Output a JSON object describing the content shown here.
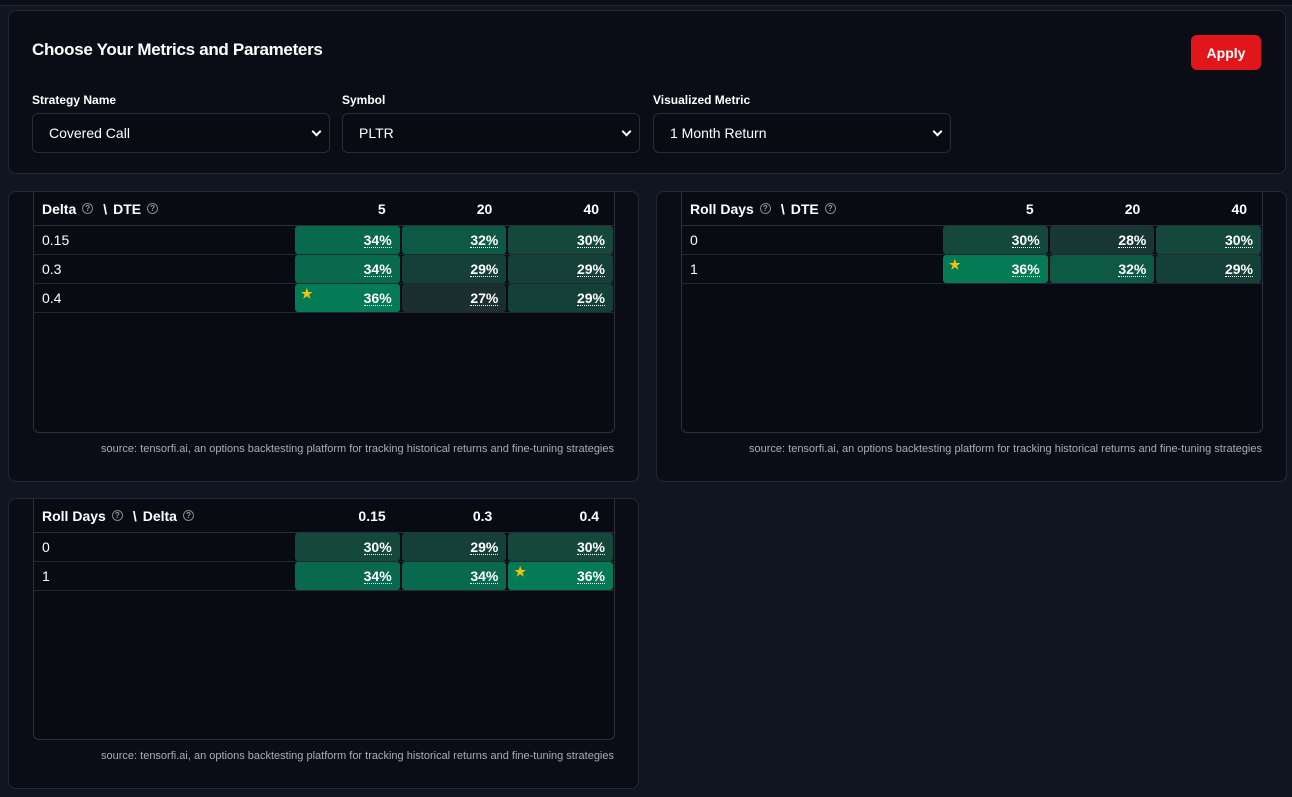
{
  "params": {
    "title": "Choose Your Metrics and Parameters",
    "apply_label": "Apply",
    "fields": [
      {
        "label": "Strategy Name",
        "value": "Covered Call"
      },
      {
        "label": "Symbol",
        "value": "PLTR"
      },
      {
        "label": "Visualized Metric",
        "value": "1 Month Return"
      }
    ]
  },
  "source": "source: tensorfi.ai, an options backtesting platform for tracking historical returns and fine-tuning strategies",
  "colors": {
    "low": "#1a2f2e",
    "high": "#047a55",
    "star": "#f5c211",
    "apply": "#e0161b"
  },
  "grids": [
    {
      "row_param": "Delta",
      "col_param": "DTE",
      "cols": [
        "5",
        "20",
        "40"
      ],
      "rows": [
        {
          "label": "0.15",
          "cells": [
            {
              "v": "34%",
              "n": 34
            },
            {
              "v": "32%",
              "n": 32
            },
            {
              "v": "30%",
              "n": 30
            }
          ]
        },
        {
          "label": "0.3",
          "cells": [
            {
              "v": "34%",
              "n": 34
            },
            {
              "v": "29%",
              "n": 29
            },
            {
              "v": "29%",
              "n": 29
            }
          ]
        },
        {
          "label": "0.4",
          "cells": [
            {
              "v": "36%",
              "n": 36,
              "best": true
            },
            {
              "v": "27%",
              "n": 27
            },
            {
              "v": "29%",
              "n": 29
            }
          ]
        }
      ]
    },
    {
      "row_param": "Roll Days",
      "col_param": "DTE",
      "cols": [
        "5",
        "20",
        "40"
      ],
      "rows": [
        {
          "label": "0",
          "cells": [
            {
              "v": "30%",
              "n": 30
            },
            {
              "v": "28%",
              "n": 28
            },
            {
              "v": "30%",
              "n": 30
            }
          ]
        },
        {
          "label": "1",
          "cells": [
            {
              "v": "36%",
              "n": 36,
              "best": true
            },
            {
              "v": "32%",
              "n": 32
            },
            {
              "v": "29%",
              "n": 29
            }
          ]
        }
      ]
    },
    {
      "row_param": "Roll Days",
      "col_param": "Delta",
      "cols": [
        "0.15",
        "0.3",
        "0.4"
      ],
      "rows": [
        {
          "label": "0",
          "cells": [
            {
              "v": "30%",
              "n": 30
            },
            {
              "v": "29%",
              "n": 29
            },
            {
              "v": "30%",
              "n": 30
            }
          ]
        },
        {
          "label": "1",
          "cells": [
            {
              "v": "34%",
              "n": 34
            },
            {
              "v": "34%",
              "n": 34
            },
            {
              "v": "36%",
              "n": 36,
              "best": true
            }
          ]
        }
      ]
    }
  ]
}
